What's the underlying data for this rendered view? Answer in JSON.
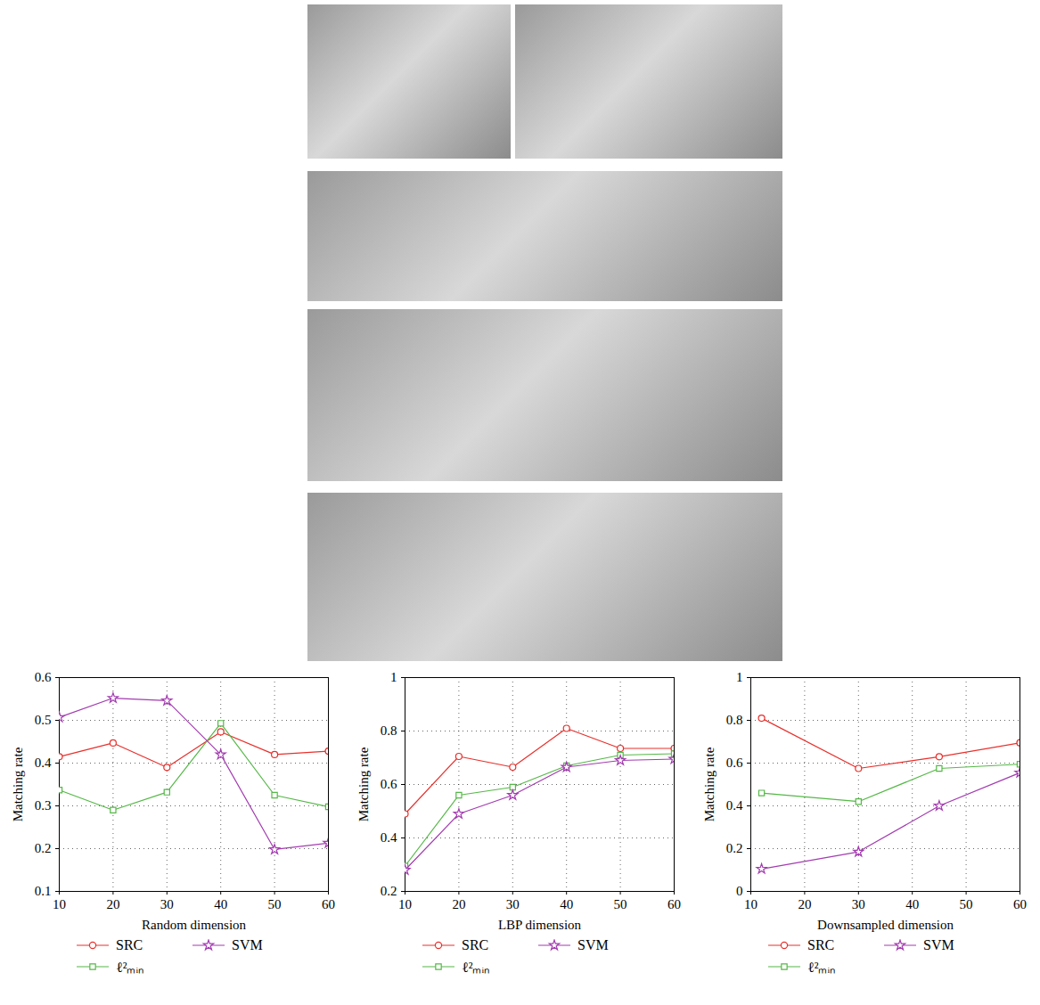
{
  "chart_data": [
    {
      "type": "line",
      "x_label": "Random dimension",
      "y_label": "Matching rate",
      "x": [
        10,
        20,
        30,
        40,
        50,
        60
      ],
      "xlim": [
        10,
        60
      ],
      "xticks": [
        10,
        20,
        30,
        40,
        50,
        60
      ],
      "ylim": [
        0.1,
        0.6
      ],
      "yticks": [
        0.1,
        0.2,
        0.3,
        0.4,
        0.5,
        0.6
      ],
      "grid": true,
      "legend": "bottom",
      "series": [
        {
          "name": "SRC",
          "color": "#e8302c",
          "marker": "circle",
          "values": [
            0.415,
            0.447,
            0.39,
            0.473,
            0.42,
            0.428
          ]
        },
        {
          "name": "ℓ²ₘᵢₙ",
          "color": "#55b847",
          "marker": "square",
          "values": [
            0.337,
            0.29,
            0.332,
            0.493,
            0.325,
            0.298
          ]
        },
        {
          "name": "SVM",
          "color": "#a33cb0",
          "marker": "star",
          "values": [
            0.507,
            0.552,
            0.546,
            0.42,
            0.198,
            0.213
          ]
        }
      ]
    },
    {
      "type": "line",
      "x_label": "LBP dimension",
      "y_label": "Matching rate",
      "x": [
        10,
        20,
        30,
        40,
        50,
        60
      ],
      "xlim": [
        10,
        60
      ],
      "xticks": [
        10,
        20,
        30,
        40,
        50,
        60
      ],
      "ylim": [
        0.2,
        1
      ],
      "yticks": [
        0.2,
        0.4,
        0.6,
        0.8,
        1
      ],
      "grid": true,
      "legend": "bottom",
      "series": [
        {
          "name": "SRC",
          "color": "#e8302c",
          "marker": "circle",
          "values": [
            0.49,
            0.705,
            0.665,
            0.81,
            0.735,
            0.735
          ]
        },
        {
          "name": "ℓ²ₘᵢₙ",
          "color": "#55b847",
          "marker": "square",
          "values": [
            0.295,
            0.56,
            0.59,
            0.67,
            0.71,
            0.715
          ]
        },
        {
          "name": "SVM",
          "color": "#a33cb0",
          "marker": "star",
          "values": [
            0.28,
            0.49,
            0.56,
            0.665,
            0.69,
            0.695
          ]
        }
      ]
    },
    {
      "type": "line",
      "x_label": "Downsampled dimension",
      "y_label": "Matching rate",
      "x": [
        12,
        30,
        45,
        60
      ],
      "xlim": [
        10,
        60
      ],
      "xticks": [
        10,
        20,
        30,
        40,
        50,
        60
      ],
      "ylim": [
        0,
        1
      ],
      "yticks": [
        0,
        0.2,
        0.4,
        0.6,
        0.8,
        1
      ],
      "grid": true,
      "legend": "bottom",
      "series": [
        {
          "name": "SRC",
          "color": "#e8302c",
          "marker": "circle",
          "values": [
            0.81,
            0.575,
            0.63,
            0.695
          ]
        },
        {
          "name": "ℓ²ₘᵢₙ",
          "color": "#55b847",
          "marker": "square",
          "values": [
            0.46,
            0.42,
            0.575,
            0.595
          ]
        },
        {
          "name": "SVM",
          "color": "#a33cb0",
          "marker": "star",
          "values": [
            0.105,
            0.185,
            0.4,
            0.555
          ]
        }
      ]
    }
  ]
}
